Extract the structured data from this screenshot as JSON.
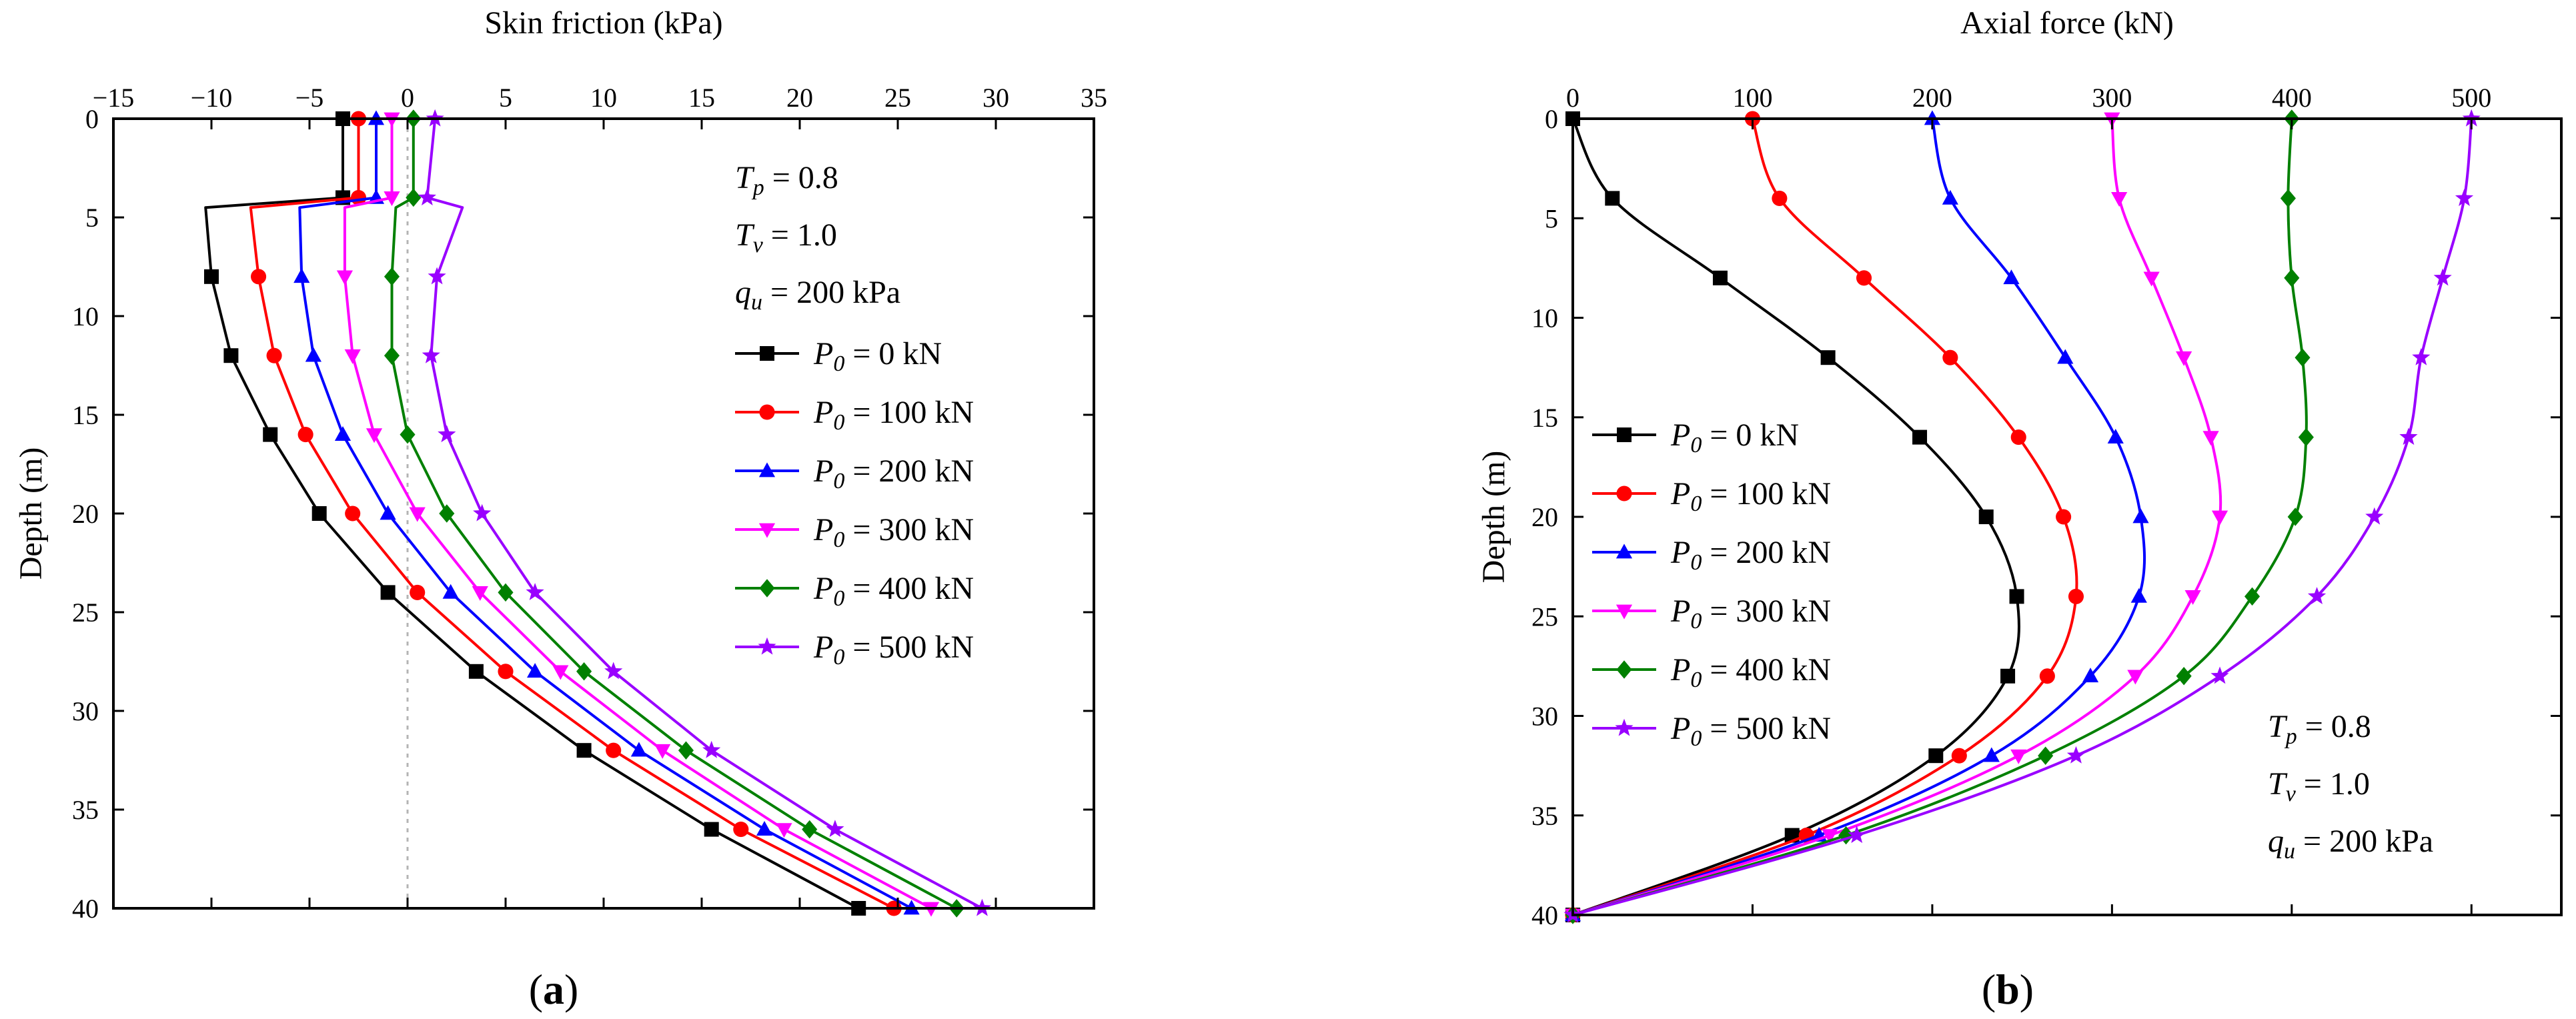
{
  "chart_data": [
    {
      "type": "line",
      "panel_label": "(a)",
      "title": "",
      "xlabel": "Skin friction (kPa)",
      "ylabel": "Depth (m)",
      "xlim": [
        -15,
        35
      ],
      "ylim": [
        0,
        40
      ],
      "x_ticks": [
        -15,
        -10,
        -5,
        0,
        5,
        10,
        15,
        20,
        25,
        30,
        35
      ],
      "y_ticks": [
        0,
        5,
        10,
        15,
        20,
        25,
        30,
        35,
        40
      ],
      "x_axis_position": "top",
      "y_inverted": true,
      "reference_line": {
        "x": 0,
        "style": "dashed gray"
      },
      "annotation": [
        "T_p = 0.8",
        "T_v = 1.0",
        "q_u = 200 kPa"
      ],
      "annotation_parts": [
        {
          "sym": "T",
          "sub": "p",
          "rest": " = 0.8"
        },
        {
          "sym": "T",
          "sub": "v",
          "rest": " = 1.0"
        },
        {
          "sym": "q",
          "sub": "u",
          "rest": " = 200 kPa"
        }
      ],
      "legend_position": "right",
      "series": [
        {
          "name": "P0 = 0 kN",
          "label_sym": "P",
          "label_sub": "0",
          "label_rest": " = 0 kN",
          "color": "#000000",
          "marker": "square",
          "line": [
            [
              -3.3,
              0
            ],
            [
              -3.3,
              4
            ],
            [
              -10.3,
              4.5
            ],
            [
              -10,
              8
            ],
            [
              -9,
              12
            ],
            [
              -7,
              16
            ],
            [
              -4.5,
              20
            ],
            [
              -1,
              24
            ],
            [
              3.5,
              28
            ],
            [
              9,
              32
            ],
            [
              15.5,
              36
            ],
            [
              23,
              40
            ]
          ],
          "points": [
            [
              -3.3,
              0
            ],
            [
              -3.3,
              4
            ],
            [
              -10,
              8
            ],
            [
              -9,
              12
            ],
            [
              -7,
              16
            ],
            [
              -4.5,
              20
            ],
            [
              -1,
              24
            ],
            [
              3.5,
              28
            ],
            [
              9,
              32
            ],
            [
              15.5,
              36
            ],
            [
              23,
              40
            ]
          ]
        },
        {
          "name": "P0 = 100 kN",
          "label_sym": "P",
          "label_sub": "0",
          "label_rest": " = 100 kN",
          "color": "#ff0000",
          "marker": "circle",
          "line": [
            [
              -2.5,
              0
            ],
            [
              -2.5,
              4
            ],
            [
              -8,
              4.5
            ],
            [
              -7.6,
              8
            ],
            [
              -6.8,
              12
            ],
            [
              -5.2,
              16
            ],
            [
              -2.8,
              20
            ],
            [
              0.5,
              24
            ],
            [
              5,
              28
            ],
            [
              10.5,
              32
            ],
            [
              17,
              36
            ],
            [
              24.8,
              40
            ]
          ],
          "points": [
            [
              -2.5,
              0
            ],
            [
              -2.5,
              4
            ],
            [
              -7.6,
              8
            ],
            [
              -6.8,
              12
            ],
            [
              -5.2,
              16
            ],
            [
              -2.8,
              20
            ],
            [
              0.5,
              24
            ],
            [
              5,
              28
            ],
            [
              10.5,
              32
            ],
            [
              17,
              36
            ],
            [
              24.8,
              40
            ]
          ]
        },
        {
          "name": "P0 = 200 kN",
          "label_sym": "P",
          "label_sub": "0",
          "label_rest": " = 200 kN",
          "color": "#0000ff",
          "marker": "triangle-up",
          "line": [
            [
              -1.6,
              0
            ],
            [
              -1.6,
              4
            ],
            [
              -5.5,
              4.5
            ],
            [
              -5.4,
              8
            ],
            [
              -4.8,
              12
            ],
            [
              -3.3,
              16
            ],
            [
              -1,
              20
            ],
            [
              2.2,
              24
            ],
            [
              6.5,
              28
            ],
            [
              11.8,
              32
            ],
            [
              18.2,
              36
            ],
            [
              25.7,
              40
            ]
          ],
          "points": [
            [
              -1.6,
              0
            ],
            [
              -1.6,
              4
            ],
            [
              -5.4,
              8
            ],
            [
              -4.8,
              12
            ],
            [
              -3.3,
              16
            ],
            [
              -1,
              20
            ],
            [
              2.2,
              24
            ],
            [
              6.5,
              28
            ],
            [
              11.8,
              32
            ],
            [
              18.2,
              36
            ],
            [
              25.7,
              40
            ]
          ]
        },
        {
          "name": "P0 = 300 kN",
          "label_sym": "P",
          "label_sub": "0",
          "label_rest": " = 300 kN",
          "color": "#ff00ff",
          "marker": "triangle-down",
          "line": [
            [
              -0.8,
              0
            ],
            [
              -0.8,
              4
            ],
            [
              -3.2,
              4.5
            ],
            [
              -3.2,
              8
            ],
            [
              -2.8,
              12
            ],
            [
              -1.7,
              16
            ],
            [
              0.5,
              20
            ],
            [
              3.7,
              24
            ],
            [
              7.8,
              28
            ],
            [
              13,
              32
            ],
            [
              19.2,
              36
            ],
            [
              26.7,
              40
            ]
          ],
          "points": [
            [
              -0.8,
              0
            ],
            [
              -0.8,
              4
            ],
            [
              -3.2,
              8
            ],
            [
              -2.8,
              12
            ],
            [
              -1.7,
              16
            ],
            [
              0.5,
              20
            ],
            [
              3.7,
              24
            ],
            [
              7.8,
              28
            ],
            [
              13,
              32
            ],
            [
              19.2,
              36
            ],
            [
              26.7,
              40
            ]
          ]
        },
        {
          "name": "P0 = 400 kN",
          "label_sym": "P",
          "label_sub": "0",
          "label_rest": " = 400 kN",
          "color": "#008000",
          "marker": "diamond",
          "line": [
            [
              0.3,
              0
            ],
            [
              0.3,
              4
            ],
            [
              -0.6,
              4.5
            ],
            [
              -0.8,
              8
            ],
            [
              -0.8,
              12
            ],
            [
              0,
              16
            ],
            [
              2,
              20
            ],
            [
              5,
              24
            ],
            [
              9,
              28
            ],
            [
              14.2,
              32
            ],
            [
              20.5,
              36
            ],
            [
              28,
              40
            ]
          ],
          "points": [
            [
              0.3,
              0
            ],
            [
              0.3,
              4
            ],
            [
              -0.8,
              8
            ],
            [
              -0.8,
              12
            ],
            [
              0,
              16
            ],
            [
              2,
              20
            ],
            [
              5,
              24
            ],
            [
              9,
              28
            ],
            [
              14.2,
              32
            ],
            [
              20.5,
              36
            ],
            [
              28,
              40
            ]
          ]
        },
        {
          "name": "P0 = 500 kN",
          "label_sym": "P",
          "label_sub": "0",
          "label_rest": " = 500 kN",
          "color": "#9900ff",
          "marker": "star",
          "line": [
            [
              1.4,
              0
            ],
            [
              1,
              4
            ],
            [
              2.8,
              4.5
            ],
            [
              1.5,
              8
            ],
            [
              1.2,
              12
            ],
            [
              2,
              16
            ],
            [
              3.8,
              20
            ],
            [
              6.5,
              24
            ],
            [
              10.5,
              28
            ],
            [
              15.5,
              32
            ],
            [
              21.8,
              36
            ],
            [
              29.3,
              40
            ]
          ],
          "points": [
            [
              1.4,
              0
            ],
            [
              1,
              4
            ],
            [
              1.5,
              8
            ],
            [
              1.2,
              12
            ],
            [
              2,
              16
            ],
            [
              3.8,
              20
            ],
            [
              6.5,
              24
            ],
            [
              10.5,
              28
            ],
            [
              15.5,
              32
            ],
            [
              21.8,
              36
            ],
            [
              29.3,
              40
            ]
          ]
        }
      ]
    },
    {
      "type": "line",
      "panel_label": "(b)",
      "title": "",
      "xlabel": "Axial force (kN)",
      "ylabel": "Depth (m)",
      "xlim": [
        0,
        550
      ],
      "ylim": [
        0,
        40
      ],
      "x_ticks": [
        0,
        100,
        200,
        300,
        400,
        500
      ],
      "y_ticks": [
        0,
        5,
        10,
        15,
        20,
        25,
        30,
        35,
        40
      ],
      "x_axis_position": "top",
      "y_inverted": true,
      "annotation": [
        "T_p = 0.8",
        "T_v = 1.0",
        "q_u = 200 kPa"
      ],
      "annotation_parts": [
        {
          "sym": "T",
          "sub": "p",
          "rest": " = 0.8"
        },
        {
          "sym": "T",
          "sub": "v",
          "rest": " = 1.0"
        },
        {
          "sym": "q",
          "sub": "u",
          "rest": " = 200 kPa"
        }
      ],
      "legend_position": "left",
      "series": [
        {
          "name": "P0 = 0 kN",
          "label_sym": "P",
          "label_sub": "0",
          "label_rest": " = 0 kN",
          "color": "#000000",
          "marker": "square",
          "points": [
            [
              0,
              0
            ],
            [
              22,
              4
            ],
            [
              82,
              8
            ],
            [
              142,
              12
            ],
            [
              193,
              16
            ],
            [
              230,
              20
            ],
            [
              247,
              24
            ],
            [
              242,
              28
            ],
            [
              202,
              32
            ],
            [
              122,
              36
            ],
            [
              0,
              40
            ]
          ]
        },
        {
          "name": "P0 = 100 kN",
          "label_sym": "P",
          "label_sub": "0",
          "label_rest": " = 100 kN",
          "color": "#ff0000",
          "marker": "circle",
          "points": [
            [
              100,
              0
            ],
            [
              115,
              4
            ],
            [
              162,
              8
            ],
            [
              210,
              12
            ],
            [
              248,
              16
            ],
            [
              273,
              20
            ],
            [
              280,
              24
            ],
            [
              264,
              28
            ],
            [
              215,
              32
            ],
            [
              130,
              36
            ],
            [
              0,
              40
            ]
          ]
        },
        {
          "name": "P0 = 200 kN",
          "label_sym": "P",
          "label_sub": "0",
          "label_rest": " = 200 kN",
          "color": "#0000ff",
          "marker": "triangle-up",
          "points": [
            [
              200,
              0
            ],
            [
              210,
              4
            ],
            [
              244,
              8
            ],
            [
              274,
              12
            ],
            [
              302,
              16
            ],
            [
              316,
              20
            ],
            [
              315,
              24
            ],
            [
              288,
              28
            ],
            [
              233,
              32
            ],
            [
              137,
              36
            ],
            [
              0,
              40
            ]
          ]
        },
        {
          "name": "P0 = 300 kN",
          "label_sym": "P",
          "label_sub": "0",
          "label_rest": " = 300 kN",
          "color": "#ff00ff",
          "marker": "triangle-down",
          "points": [
            [
              300,
              0
            ],
            [
              304,
              4
            ],
            [
              322,
              8
            ],
            [
              340,
              12
            ],
            [
              355,
              16
            ],
            [
              360,
              20
            ],
            [
              345,
              24
            ],
            [
              313,
              28
            ],
            [
              248,
              32
            ],
            [
              143,
              36
            ],
            [
              0,
              40
            ]
          ]
        },
        {
          "name": "P0 = 400 kN",
          "label_sym": "P",
          "label_sub": "0",
          "label_rest": " = 400 kN",
          "color": "#008000",
          "marker": "diamond",
          "points": [
            [
              400,
              0
            ],
            [
              398,
              4
            ],
            [
              400,
              8
            ],
            [
              406,
              12
            ],
            [
              408,
              16
            ],
            [
              402,
              20
            ],
            [
              378,
              24
            ],
            [
              340,
              28
            ],
            [
              263,
              32
            ],
            [
              152,
              36
            ],
            [
              0,
              40
            ]
          ]
        },
        {
          "name": "P0 = 500 kN",
          "label_sym": "P",
          "label_sub": "0",
          "label_rest": " = 500 kN",
          "color": "#9900ff",
          "marker": "star",
          "points": [
            [
              500,
              0
            ],
            [
              496,
              4
            ],
            [
              484,
              8
            ],
            [
              472,
              12
            ],
            [
              465,
              16
            ],
            [
              446,
              20
            ],
            [
              414,
              24
            ],
            [
              360,
              28
            ],
            [
              280,
              32
            ],
            [
              158,
              36
            ],
            [
              0,
              40
            ]
          ]
        }
      ]
    }
  ]
}
